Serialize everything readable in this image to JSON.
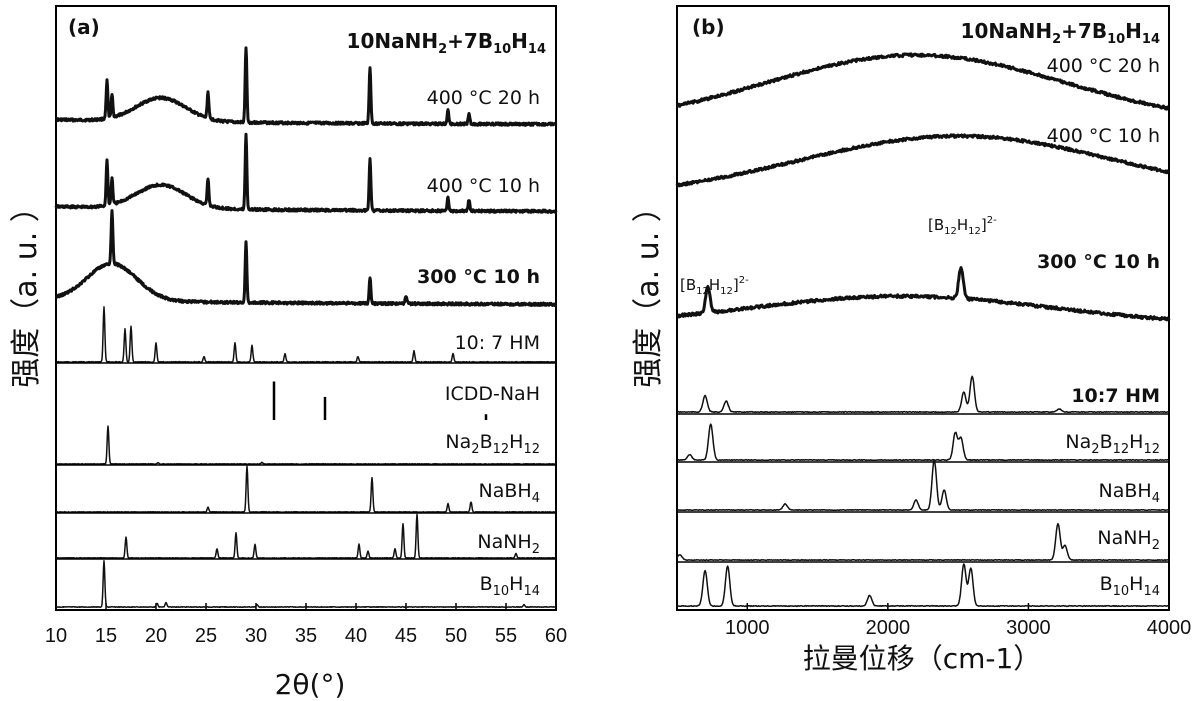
{
  "chart_data": [
    {
      "type": "line",
      "panel_label": "(a)",
      "title": "10NaNH2+7B10H14",
      "title_parts": {
        "a": "10NaNH",
        "b": "2",
        "c": "+7B",
        "d": "10",
        "e": "H",
        "f": "14"
      },
      "xlabel": "2θ(°)",
      "ylabel": "强度（a. u. ）",
      "xlim": [
        10,
        60
      ],
      "xticks": [
        10,
        15,
        20,
        25,
        30,
        35,
        40,
        45,
        50,
        55,
        60
      ],
      "grid": false,
      "series": [
        {
          "name": "400 °C 20 h",
          "peaks": [
            [
              15.1,
              0.5
            ],
            [
              15.6,
              0.3
            ],
            [
              25.2,
              0.35
            ],
            [
              29.0,
              1.0
            ],
            [
              41.4,
              0.75
            ],
            [
              49.2,
              0.18
            ],
            [
              51.3,
              0.15
            ]
          ],
          "hump": {
            "center": 20.5,
            "height": 0.7
          }
        },
        {
          "name": "400 °C 10 h",
          "peaks": [
            [
              15.1,
              0.6
            ],
            [
              15.6,
              0.35
            ],
            [
              25.2,
              0.35
            ],
            [
              29.0,
              1.0
            ],
            [
              41.4,
              0.7
            ],
            [
              49.2,
              0.18
            ],
            [
              51.3,
              0.15
            ]
          ],
          "hump": {
            "center": 20.5,
            "height": 0.7
          }
        },
        {
          "name": "300 °C 10 h",
          "peaks": [
            [
              15.6,
              0.7
            ],
            [
              29.0,
              0.8
            ],
            [
              41.4,
              0.35
            ],
            [
              45.0,
              0.1
            ]
          ],
          "hump": {
            "center": 15.6,
            "height": 1.1
          }
        },
        {
          "name": "10: 7 HM",
          "peaks": [
            [
              14.8,
              1.0
            ],
            [
              16.9,
              0.6
            ],
            [
              17.5,
              0.65
            ],
            [
              20.0,
              0.35
            ],
            [
              24.8,
              0.1
            ],
            [
              27.9,
              0.35
            ],
            [
              29.6,
              0.3
            ],
            [
              32.9,
              0.15
            ],
            [
              40.2,
              0.1
            ],
            [
              45.8,
              0.2
            ],
            [
              49.7,
              0.15
            ]
          ]
        },
        {
          "name": "ICDD-NaH",
          "sticks": [
            [
              31.8,
              1.0
            ],
            [
              36.9,
              0.6
            ],
            [
              53.0,
              0.15
            ]
          ]
        },
        {
          "name": "Na2B12H12",
          "peaks": [
            [
              15.2,
              1.0
            ],
            [
              20.2,
              0.04
            ],
            [
              30.6,
              0.04
            ]
          ]
        },
        {
          "name": "NaBH4",
          "peaks": [
            [
              25.2,
              0.1
            ],
            [
              29.1,
              1.0
            ],
            [
              41.6,
              0.75
            ],
            [
              49.2,
              0.18
            ],
            [
              51.5,
              0.22
            ]
          ]
        },
        {
          "name": "NaNH2",
          "peaks": [
            [
              17.0,
              0.45
            ],
            [
              26.1,
              0.2
            ],
            [
              28.0,
              0.55
            ],
            [
              29.9,
              0.3
            ],
            [
              40.3,
              0.3
            ],
            [
              41.2,
              0.15
            ],
            [
              43.9,
              0.2
            ],
            [
              44.7,
              0.75
            ],
            [
              46.1,
              0.95
            ],
            [
              56.0,
              0.1
            ]
          ]
        },
        {
          "name": "B10H14",
          "peaks": [
            [
              14.8,
              1.0
            ],
            [
              20.1,
              0.08
            ],
            [
              21.0,
              0.1
            ],
            [
              30.1,
              0.05
            ],
            [
              56.8,
              0.05
            ]
          ]
        }
      ],
      "series_labels": [
        {
          "plain": "400 °C 20 h"
        },
        {
          "plain": "400 °C 10 h"
        },
        {
          "plain": "300 °C 10 h"
        },
        {
          "plain": "10: 7 HM"
        },
        {
          "plain": "ICDD-NaH"
        },
        {
          "a": "Na",
          "b": "2",
          "c": "B",
          "d": "12",
          "e": "H",
          "f": "12"
        },
        {
          "a": "NaBH",
          "b": "4"
        },
        {
          "a": "NaNH",
          "b": "2"
        },
        {
          "a": "B",
          "b": "10",
          "c": "H",
          "d": "14"
        }
      ]
    },
    {
      "type": "line",
      "panel_label": "(b)",
      "title": "10NaNH2+7B10H14",
      "title_parts": {
        "a": "10NaNH",
        "b": "2",
        "c": "+7B",
        "d": "10",
        "e": "H",
        "f": "14"
      },
      "xlabel": "拉曼位移（cm-1）",
      "ylabel": "强度（a. u. ）",
      "xlim": [
        500,
        4000
      ],
      "xticks": [
        1000,
        2000,
        3000,
        4000
      ],
      "grid": false,
      "annotations": [
        {
          "a": "[B",
          "b": "12",
          "c": "H",
          "d": "12",
          "e": "]",
          "f": "2-",
          "near": 720
        },
        {
          "a": "[B",
          "b": "12",
          "c": "H",
          "d": "12",
          "e": "]",
          "f": "2-",
          "near": 2520
        }
      ],
      "series": [
        {
          "name": "400 °C 20 h",
          "broad": {
            "center": 2200,
            "width": 1500,
            "height": 1.0
          }
        },
        {
          "name": "400 °C 10 h",
          "broad": {
            "center": 2500,
            "width": 1600,
            "height": 1.0
          }
        },
        {
          "name": "300 °C 10 h",
          "broad": {
            "center": 2100,
            "width": 1500,
            "height": 0.6
          },
          "peaks": [
            [
              720,
              0.55
            ],
            [
              2520,
              0.65
            ]
          ]
        },
        {
          "name": "10:7 HM",
          "peaks": [
            [
              700,
              0.45
            ],
            [
              850,
              0.3
            ],
            [
              2540,
              0.55
            ],
            [
              2600,
              1.0
            ],
            [
              3220,
              0.08
            ]
          ]
        },
        {
          "name": "Na2B12H12",
          "peaks": [
            [
              590,
              0.15
            ],
            [
              740,
              1.0
            ],
            [
              2480,
              0.75
            ],
            [
              2520,
              0.6
            ]
          ]
        },
        {
          "name": "NaBH4",
          "peaks": [
            [
              1270,
              0.12
            ],
            [
              2200,
              0.2
            ],
            [
              2330,
              1.0
            ],
            [
              2400,
              0.4
            ]
          ]
        },
        {
          "name": "NaNH2",
          "peaks": [
            [
              520,
              0.15
            ],
            [
              3210,
              1.0
            ],
            [
              3260,
              0.4
            ]
          ]
        },
        {
          "name": "B10H14",
          "peaks": [
            [
              700,
              0.85
            ],
            [
              860,
              0.95
            ],
            [
              1870,
              0.25
            ],
            [
              2540,
              1.0
            ],
            [
              2590,
              0.9
            ]
          ]
        }
      ],
      "series_labels": [
        {
          "plain": "400 °C 20 h"
        },
        {
          "plain": "400 °C 10 h"
        },
        {
          "plain": "300 °C 10 h"
        },
        {
          "plain": "10:7 HM"
        },
        {
          "a": "Na",
          "b": "2",
          "c": "B",
          "d": "12",
          "e": "H",
          "f": "12"
        },
        {
          "a": "NaBH",
          "b": "4"
        },
        {
          "a": "NaNH",
          "b": "2"
        },
        {
          "a": "B",
          "b": "10",
          "c": "H",
          "d": "14"
        }
      ]
    }
  ]
}
